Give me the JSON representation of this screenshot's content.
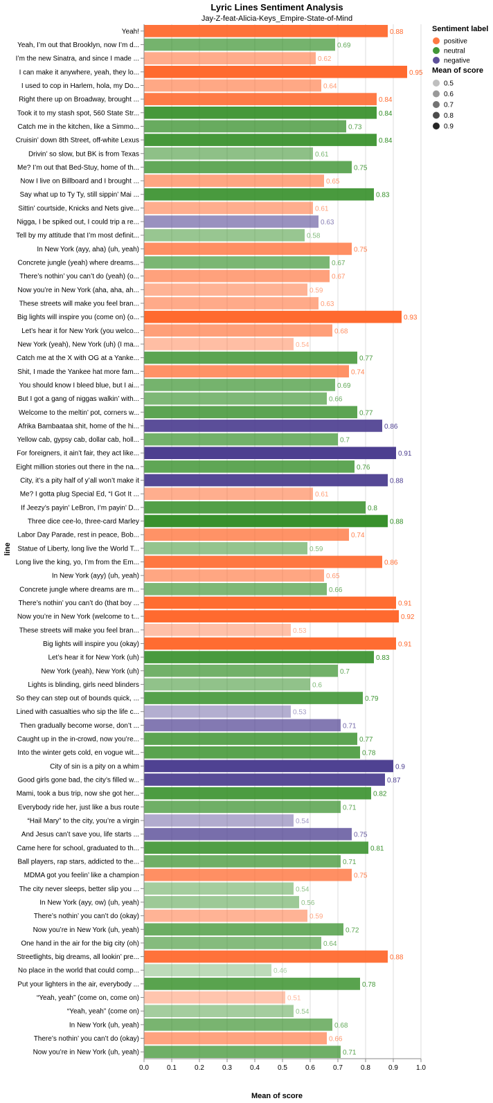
{
  "chart_data": {
    "type": "bar",
    "orientation": "horizontal",
    "title": "Lyric Lines Sentiment Analysis",
    "subtitle": "Jay-Z-feat-Alicia-Keys_Empire-State-of-Mind",
    "xlabel": "Mean of score",
    "ylabel": "line",
    "xlim": [
      0,
      1
    ],
    "xticks": [
      "0.0",
      "0.1",
      "0.2",
      "0.3",
      "0.4",
      "0.5",
      "0.6",
      "0.7",
      "0.8",
      "0.9",
      "1.0"
    ],
    "grid": true,
    "legend_placement": "right",
    "color_legend": {
      "title": "Sentiment label",
      "entries": [
        {
          "label": "positive",
          "color": "#ff6a2f"
        },
        {
          "label": "neutral",
          "color": "#2e8b21"
        },
        {
          "label": "negative",
          "color": "#4b3d8f"
        }
      ]
    },
    "opacity_legend": {
      "title": "Mean of score",
      "entries": [
        "0.5",
        "0.6",
        "0.7",
        "0.8",
        "0.9"
      ]
    },
    "rows": [
      {
        "line": "Yeah!",
        "value": 0.88,
        "label": "0.88",
        "sentiment": "positive"
      },
      {
        "line": "Yeah, I’m out that Brooklyn, now I’m d...",
        "value": 0.69,
        "label": "0.69",
        "sentiment": "neutral"
      },
      {
        "line": "I’m the new Sinatra, and since I made ...",
        "value": 0.62,
        "label": "0.62",
        "sentiment": "positive"
      },
      {
        "line": "I can make it anywhere, yeah, they lo...",
        "value": 0.95,
        "label": "0.95",
        "sentiment": "positive"
      },
      {
        "line": "I used to cop in Harlem, hola, my Do...",
        "value": 0.64,
        "label": "0.64",
        "sentiment": "positive"
      },
      {
        "line": "Right there up on Broadway, brought ...",
        "value": 0.84,
        "label": "0.84",
        "sentiment": "positive"
      },
      {
        "line": "Took it to my stash spot, 560 State Str...",
        "value": 0.84,
        "label": "0.84",
        "sentiment": "neutral"
      },
      {
        "line": "Catch me in the kitchen, like a Simmo...",
        "value": 0.73,
        "label": "0.73",
        "sentiment": "neutral"
      },
      {
        "line": "Cruisin’ down 8th Street, off-white Lexus",
        "value": 0.84,
        "label": "0.84",
        "sentiment": "neutral"
      },
      {
        "line": "Drivin’ so slow, but BK is from Texas",
        "value": 0.61,
        "label": "0.61",
        "sentiment": "neutral"
      },
      {
        "line": "Me? I’m out that Bed-Stuy, home of th...",
        "value": 0.75,
        "label": "0.75",
        "sentiment": "neutral"
      },
      {
        "line": "Now I live on Billboard and I brought ...",
        "value": 0.65,
        "label": "0.65",
        "sentiment": "positive"
      },
      {
        "line": "Say what up to Ty Ty, still sippin’ Mai ...",
        "value": 0.83,
        "label": "0.83",
        "sentiment": "neutral"
      },
      {
        "line": "Sittin’ courtside, Knicks and Nets give...",
        "value": 0.61,
        "label": "0.61",
        "sentiment": "positive"
      },
      {
        "line": "Nigga, I be spiked out, I could trip a re...",
        "value": 0.63,
        "label": "0.63",
        "sentiment": "negative"
      },
      {
        "line": "Tell by my attitude that I’m most definit...",
        "value": 0.58,
        "label": "0.58",
        "sentiment": "neutral"
      },
      {
        "line": "In New York (ayy, aha) (uh, yeah)",
        "value": 0.75,
        "label": "0.75",
        "sentiment": "positive"
      },
      {
        "line": "Concrete jungle (yeah) where dreams...",
        "value": 0.67,
        "label": "0.67",
        "sentiment": "neutral"
      },
      {
        "line": "There’s nothin’ you can’t do (yeah) (o...",
        "value": 0.67,
        "label": "0.67",
        "sentiment": "positive"
      },
      {
        "line": "Now you’re in New York (aha, aha, ah...",
        "value": 0.59,
        "label": "0.59",
        "sentiment": "positive"
      },
      {
        "line": "These streets will make you feel bran...",
        "value": 0.63,
        "label": "0.63",
        "sentiment": "positive"
      },
      {
        "line": "Big lights will inspire you (come on) (o...",
        "value": 0.93,
        "label": "0.93",
        "sentiment": "positive"
      },
      {
        "line": "Let’s hear it for New York (you welco...",
        "value": 0.68,
        "label": "0.68",
        "sentiment": "positive"
      },
      {
        "line": "New York (yeah), New York (uh) (I ma...",
        "value": 0.54,
        "label": "0.54",
        "sentiment": "positive"
      },
      {
        "line": "Catch me at the X with OG at a Yanke...",
        "value": 0.77,
        "label": "0.77",
        "sentiment": "neutral"
      },
      {
        "line": "Shit, I made the Yankee hat more fam...",
        "value": 0.74,
        "label": "0.74",
        "sentiment": "positive"
      },
      {
        "line": "You should know I bleed blue, but I ai...",
        "value": 0.69,
        "label": "0.69",
        "sentiment": "neutral"
      },
      {
        "line": "But I got a gang of niggas walkin’ with...",
        "value": 0.66,
        "label": "0.66",
        "sentiment": "neutral"
      },
      {
        "line": "Welcome to the meltin’ pot, corners w...",
        "value": 0.77,
        "label": "0.77",
        "sentiment": "neutral"
      },
      {
        "line": "Afrika Bambaataa shit, home of the hi...",
        "value": 0.86,
        "label": "0.86",
        "sentiment": "negative"
      },
      {
        "line": "Yellow cab, gypsy cab, dollar cab, holl...",
        "value": 0.7,
        "label": "0.7",
        "sentiment": "neutral"
      },
      {
        "line": "For foreigners, it ain’t fair, they act like...",
        "value": 0.91,
        "label": "0.91",
        "sentiment": "negative"
      },
      {
        "line": "Eight million stories out there in the na...",
        "value": 0.76,
        "label": "0.76",
        "sentiment": "neutral"
      },
      {
        "line": "City, it’s a pity half of y’all won’t make it",
        "value": 0.88,
        "label": "0.88",
        "sentiment": "negative"
      },
      {
        "line": "Me? I gotta plug Special Ed, “I Got It ...",
        "value": 0.61,
        "label": "0.61",
        "sentiment": "positive"
      },
      {
        "line": "If Jeezy’s payin’ LeBron, I’m payin’ D...",
        "value": 0.8,
        "label": "0.8",
        "sentiment": "neutral"
      },
      {
        "line": "Three dice cee-lo, three-card Marley",
        "value": 0.88,
        "label": "0.88",
        "sentiment": "neutral"
      },
      {
        "line": "Labor Day Parade, rest in peace, Bob...",
        "value": 0.74,
        "label": "0.74",
        "sentiment": "positive"
      },
      {
        "line": "Statue of Liberty, long live the World T...",
        "value": 0.59,
        "label": "0.59",
        "sentiment": "neutral"
      },
      {
        "line": "Long live the king, yo, I’m from the Em...",
        "value": 0.86,
        "label": "0.86",
        "sentiment": "positive"
      },
      {
        "line": "In New York (ayy) (uh, yeah)",
        "value": 0.65,
        "label": "0.65",
        "sentiment": "positive"
      },
      {
        "line": "Concrete jungle where dreams are m...",
        "value": 0.66,
        "label": "0.66",
        "sentiment": "neutral"
      },
      {
        "line": "There’s nothin’ you can’t do (that boy ...",
        "value": 0.91,
        "label": "0.91",
        "sentiment": "positive"
      },
      {
        "line": "Now you’re in New York (welcome to t...",
        "value": 0.92,
        "label": "0.92",
        "sentiment": "positive"
      },
      {
        "line": "These streets will make you feel bran...",
        "value": 0.53,
        "label": "0.53",
        "sentiment": "positive"
      },
      {
        "line": "Big lights will inspire you (okay)",
        "value": 0.91,
        "label": "0.91",
        "sentiment": "positive"
      },
      {
        "line": "Let’s hear it for New York (uh)",
        "value": 0.83,
        "label": "0.83",
        "sentiment": "neutral"
      },
      {
        "line": "New York (yeah), New York (uh)",
        "value": 0.7,
        "label": "0.7",
        "sentiment": "neutral"
      },
      {
        "line": "Lights is blinding, girls need blinders",
        "value": 0.6,
        "label": "0.6",
        "sentiment": "neutral"
      },
      {
        "line": "So they can step out of bounds quick, ...",
        "value": 0.79,
        "label": "0.79",
        "sentiment": "neutral"
      },
      {
        "line": "Lined with casualties who sip the life c...",
        "value": 0.53,
        "label": "0.53",
        "sentiment": "negative"
      },
      {
        "line": "Then gradually become worse, don’t ...",
        "value": 0.71,
        "label": "0.71",
        "sentiment": "negative"
      },
      {
        "line": "Caught up in the in-crowd, now you’re...",
        "value": 0.77,
        "label": "0.77",
        "sentiment": "neutral"
      },
      {
        "line": "Into the winter gets cold, en vogue wit...",
        "value": 0.78,
        "label": "0.78",
        "sentiment": "neutral"
      },
      {
        "line": "City of sin is a pity on a whim",
        "value": 0.9,
        "label": "0.9",
        "sentiment": "negative"
      },
      {
        "line": "Good girls gone bad, the city’s filled w...",
        "value": 0.87,
        "label": "0.87",
        "sentiment": "negative"
      },
      {
        "line": "Mami, took a bus trip, now she got her...",
        "value": 0.82,
        "label": "0.82",
        "sentiment": "neutral"
      },
      {
        "line": "Everybody ride her, just like a bus route",
        "value": 0.71,
        "label": "0.71",
        "sentiment": "neutral"
      },
      {
        "line": "“Hail Mary” to the city, you’re a virgin",
        "value": 0.54,
        "label": "0.54",
        "sentiment": "negative"
      },
      {
        "line": "And Jesus can’t save you, life starts ...",
        "value": 0.75,
        "label": "0.75",
        "sentiment": "negative"
      },
      {
        "line": "Came here for school, graduated to th...",
        "value": 0.81,
        "label": "0.81",
        "sentiment": "neutral"
      },
      {
        "line": "Ball players, rap stars, addicted to the...",
        "value": 0.71,
        "label": "0.71",
        "sentiment": "neutral"
      },
      {
        "line": "MDMA got you feelin’ like a champion",
        "value": 0.75,
        "label": "0.75",
        "sentiment": "positive"
      },
      {
        "line": "The city never sleeps, better slip you ...",
        "value": 0.54,
        "label": "0.54",
        "sentiment": "neutral"
      },
      {
        "line": "In New York (ayy, ow) (uh, yeah)",
        "value": 0.56,
        "label": "0.56",
        "sentiment": "neutral"
      },
      {
        "line": "There’s nothin’ you can’t do (okay)",
        "value": 0.59,
        "label": "0.59",
        "sentiment": "positive"
      },
      {
        "line": "Now you’re in New York (uh, yeah)",
        "value": 0.72,
        "label": "0.72",
        "sentiment": "neutral"
      },
      {
        "line": "One hand in the air for the big city (oh)",
        "value": 0.64,
        "label": "0.64",
        "sentiment": "neutral"
      },
      {
        "line": "Streetlights, big dreams, all lookin’ pre...",
        "value": 0.88,
        "label": "0.88",
        "sentiment": "positive"
      },
      {
        "line": "No place in the world that could comp...",
        "value": 0.46,
        "label": "0.46",
        "sentiment": "neutral"
      },
      {
        "line": "Put your lighters in the air, everybody ...",
        "value": 0.78,
        "label": "0.78",
        "sentiment": "neutral"
      },
      {
        "line": "“Yeah, yeah” (come on, come on)",
        "value": 0.51,
        "label": "0.51",
        "sentiment": "positive"
      },
      {
        "line": "“Yeah, yeah” (come on)",
        "value": 0.54,
        "label": "0.54",
        "sentiment": "neutral"
      },
      {
        "line": "In New York (uh, yeah)",
        "value": 0.68,
        "label": "0.68",
        "sentiment": "neutral"
      },
      {
        "line": "There’s nothin’ you can’t do (okay)",
        "value": 0.66,
        "label": "0.66",
        "sentiment": "positive"
      },
      {
        "line": "Now you’re in New York (uh, yeah)",
        "value": 0.71,
        "label": "0.71",
        "sentiment": "neutral"
      }
    ]
  }
}
